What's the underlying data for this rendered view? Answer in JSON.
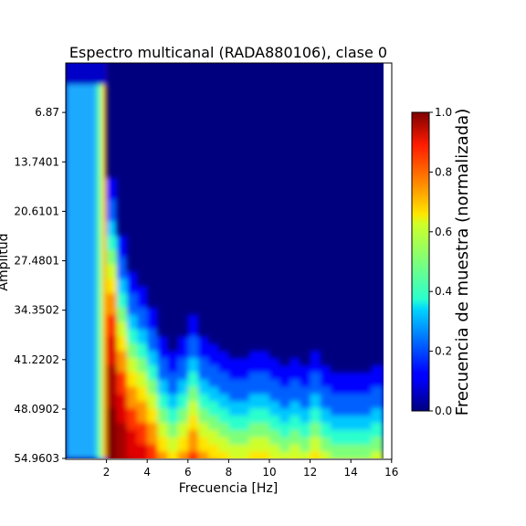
{
  "chart_data": {
    "type": "heatmap",
    "title": "Espectro multicanal (RADA880106), clase 0",
    "xlabel": "Frecuencia [Hz]",
    "ylabel": "Amplitud",
    "xlim": [
      0,
      16
    ],
    "x_ticks": [
      "2",
      "4",
      "6",
      "8",
      "10",
      "12",
      "14",
      "16"
    ],
    "x_tick_values": [
      2,
      4,
      6,
      8,
      10,
      12,
      14,
      16
    ],
    "y_ticks": [
      "6.87",
      "13.7401",
      "20.6101",
      "27.4801",
      "34.3502",
      "41.2202",
      "48.0902",
      "54.9603"
    ],
    "y_tick_values": [
      6.87,
      13.7401,
      20.6101,
      27.4801,
      34.3502,
      41.2202,
      48.0902,
      54.9603
    ],
    "ylim": [
      54.9603,
      0
    ],
    "colorbar": {
      "label": "Frecuencia de muestra (normalizada)",
      "ticks": [
        "0.0",
        "0.2",
        "0.4",
        "0.6",
        "0.8",
        "1.0"
      ],
      "range": [
        0,
        1
      ],
      "colormap": "jet"
    },
    "frequencies": [
      0,
      0.5,
      1,
      1.5,
      2,
      2.5,
      3,
      3.5,
      4,
      4.5,
      5,
      5.5,
      6,
      6.5,
      7,
      7.5,
      8,
      8.5,
      9,
      9.5,
      10,
      10.5,
      11,
      11.5,
      12,
      12.5,
      13,
      13.5,
      14,
      14.5,
      15,
      15.5
    ],
    "boundary_amplitude": [
      55,
      55,
      55,
      50,
      13,
      21,
      26,
      28,
      31,
      35,
      37,
      35,
      32,
      35,
      36,
      37,
      38,
      38,
      37,
      37,
      38,
      39,
      38,
      39,
      37,
      39,
      40,
      40,
      40,
      40,
      39,
      39
    ]
  }
}
